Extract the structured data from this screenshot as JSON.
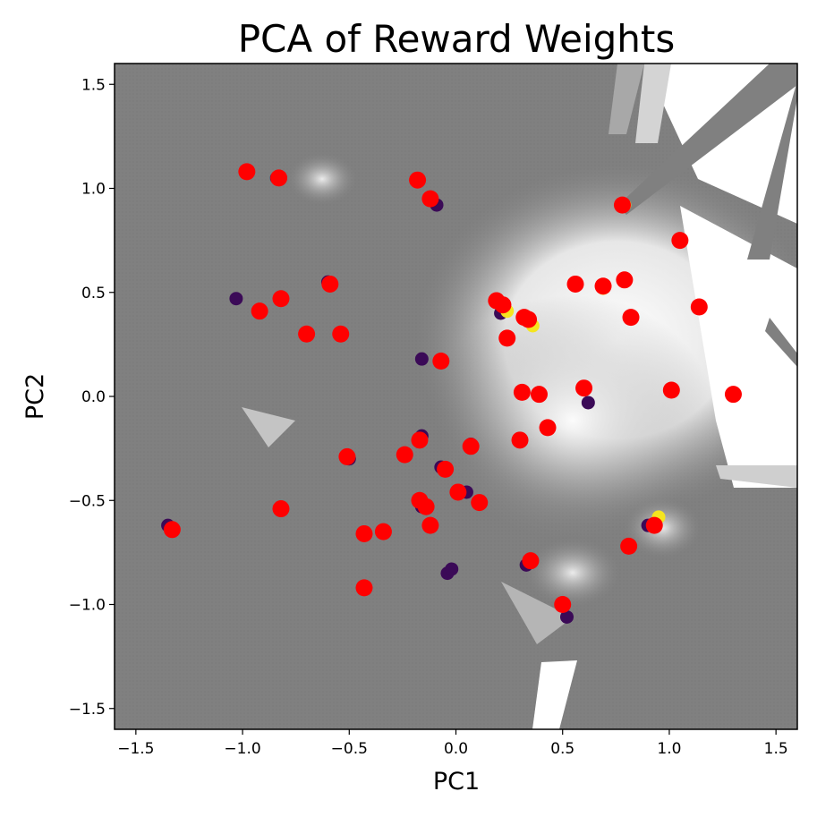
{
  "chart_data": {
    "type": "scatter",
    "title": "PCA of Reward Weights",
    "xlabel": "PC1",
    "ylabel": "PC2",
    "xlim": [
      -1.6,
      1.6
    ],
    "ylim": [
      -1.6,
      1.6
    ],
    "xticks": [
      -1.5,
      -1.0,
      -0.5,
      0.0,
      0.5,
      1.0,
      1.5
    ],
    "yticks": [
      -1.5,
      -1.0,
      -0.5,
      0.0,
      0.5,
      1.0,
      1.5
    ],
    "xtick_labels": [
      "−1.5",
      "−1.0",
      "−0.5",
      "0.0",
      "0.5",
      "1.0",
      "1.5"
    ],
    "ytick_labels": [
      "−1.5",
      "−1.0",
      "−0.5",
      "0.0",
      "0.5",
      "1.0",
      "1.5"
    ],
    "grid": false,
    "legend": "none",
    "background": {
      "description": "grayscale decision-surface heatmap",
      "base_color": "#808080",
      "light_color": "#ffffff"
    },
    "series": [
      {
        "marker_color": "#3b0a57",
        "points": [
          [
            -1.35,
            -0.62
          ],
          [
            -0.84,
            1.05
          ],
          [
            -1.03,
            0.47
          ],
          [
            -0.6,
            0.55
          ],
          [
            -0.5,
            -0.3
          ],
          [
            -0.16,
            0.18
          ],
          [
            -0.09,
            0.92
          ],
          [
            -0.16,
            -0.19
          ],
          [
            -0.16,
            -0.53
          ],
          [
            -0.12,
            -0.62
          ],
          [
            -0.07,
            -0.34
          ],
          [
            -0.04,
            -0.85
          ],
          [
            -0.02,
            -0.83
          ],
          [
            0.05,
            -0.46
          ],
          [
            0.07,
            -0.23
          ],
          [
            0.21,
            0.4
          ],
          [
            0.33,
            -0.81
          ],
          [
            0.62,
            -0.03
          ],
          [
            0.52,
            -1.06
          ],
          [
            0.9,
            -0.62
          ]
        ]
      },
      {
        "marker_color": "#f5e51f",
        "points": [
          [
            0.24,
            0.41
          ],
          [
            0.36,
            0.34
          ],
          [
            0.79,
            0.92
          ],
          [
            0.69,
            0.52
          ],
          [
            0.95,
            -0.58
          ]
        ]
      },
      {
        "marker_color": "#ff0000",
        "points": [
          [
            -1.33,
            -0.64
          ],
          [
            -0.98,
            1.08
          ],
          [
            -0.83,
            1.05
          ],
          [
            -0.92,
            0.41
          ],
          [
            -0.82,
            0.47
          ],
          [
            -0.7,
            0.3
          ],
          [
            -0.59,
            0.54
          ],
          [
            -0.54,
            0.3
          ],
          [
            -0.51,
            -0.29
          ],
          [
            -0.82,
            -0.54
          ],
          [
            -0.43,
            -0.66
          ],
          [
            -0.43,
            -0.92
          ],
          [
            -0.34,
            -0.65
          ],
          [
            -0.18,
            1.04
          ],
          [
            -0.12,
            0.95
          ],
          [
            -0.07,
            0.17
          ],
          [
            -0.24,
            -0.28
          ],
          [
            -0.17,
            -0.21
          ],
          [
            -0.05,
            -0.35
          ],
          [
            -0.17,
            -0.5
          ],
          [
            -0.14,
            -0.53
          ],
          [
            -0.12,
            -0.62
          ],
          [
            0.01,
            -0.46
          ],
          [
            0.07,
            -0.24
          ],
          [
            0.11,
            -0.51
          ],
          [
            0.19,
            0.46
          ],
          [
            0.22,
            0.44
          ],
          [
            0.24,
            0.28
          ],
          [
            0.32,
            0.38
          ],
          [
            0.34,
            0.37
          ],
          [
            0.31,
            0.02
          ],
          [
            0.39,
            0.01
          ],
          [
            0.3,
            -0.21
          ],
          [
            0.43,
            -0.15
          ],
          [
            0.35,
            -0.79
          ],
          [
            0.5,
            -1.0
          ],
          [
            0.56,
            0.54
          ],
          [
            0.6,
            0.04
          ],
          [
            0.69,
            0.53
          ],
          [
            0.78,
            0.92
          ],
          [
            0.79,
            0.56
          ],
          [
            0.82,
            0.38
          ],
          [
            1.05,
            0.75
          ],
          [
            1.01,
            0.03
          ],
          [
            1.14,
            0.43
          ],
          [
            1.3,
            0.01
          ],
          [
            0.81,
            -0.72
          ],
          [
            0.93,
            -0.62
          ]
        ]
      }
    ]
  }
}
